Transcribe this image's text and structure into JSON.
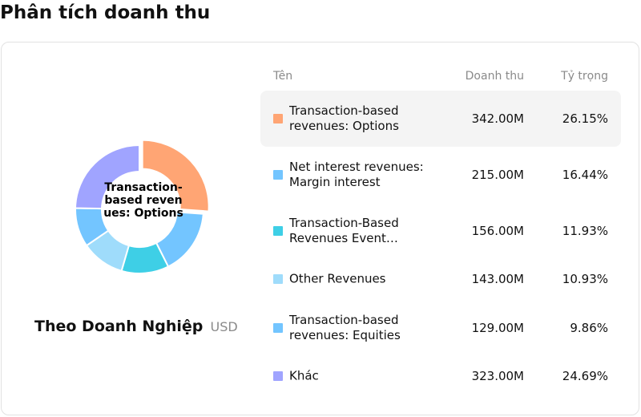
{
  "page": {
    "title": "Phân tích doanh thu"
  },
  "panel": {
    "subtitle": "Theo Doanh Nghiệp",
    "currency": "USD",
    "donut_center": "Transaction-based revenues: Options"
  },
  "table": {
    "headers": {
      "name": "Tên",
      "revenue": "Doanh thu",
      "share": "Tỷ trọng"
    },
    "rows": [
      {
        "name": "Transaction-based revenues: Options",
        "revenue": "342.00M",
        "share": "26.15%",
        "color": "#ffa574",
        "active": true
      },
      {
        "name": "Net interest revenues: Margin interest",
        "revenue": "215.00M",
        "share": "16.44%",
        "color": "#73c5ff",
        "active": false
      },
      {
        "name": "Transaction-Based Revenues Event…",
        "revenue": "156.00M",
        "share": "11.93%",
        "color": "#3ecfe6",
        "active": false
      },
      {
        "name": "Other Revenues",
        "revenue": "143.00M",
        "share": "10.93%",
        "color": "#9fdcfb",
        "active": false
      },
      {
        "name": "Transaction-based revenues: Equities",
        "revenue": "129.00M",
        "share": "9.86%",
        "color": "#73c5ff",
        "active": false
      },
      {
        "name": "Khác",
        "revenue": "323.00M",
        "share": "24.69%",
        "color": "#a0a4ff",
        "active": false
      }
    ]
  },
  "chart_data": {
    "type": "pie",
    "categories": [
      "Transaction-based revenues: Options",
      "Net interest revenues: Margin interest",
      "Transaction-Based Revenues Event…",
      "Other Revenues",
      "Transaction-based revenues: Equities",
      "Khác"
    ],
    "values": [
      342.0,
      215.0,
      156.0,
      143.0,
      129.0,
      323.0
    ],
    "shares": [
      26.15,
      16.44,
      11.93,
      10.93,
      9.86,
      24.69
    ],
    "colors": [
      "#ffa574",
      "#73c5ff",
      "#3ecfe6",
      "#9fdcfb",
      "#73c5ff",
      "#a0a4ff"
    ],
    "highlighted_index": 0,
    "donut": true
  }
}
